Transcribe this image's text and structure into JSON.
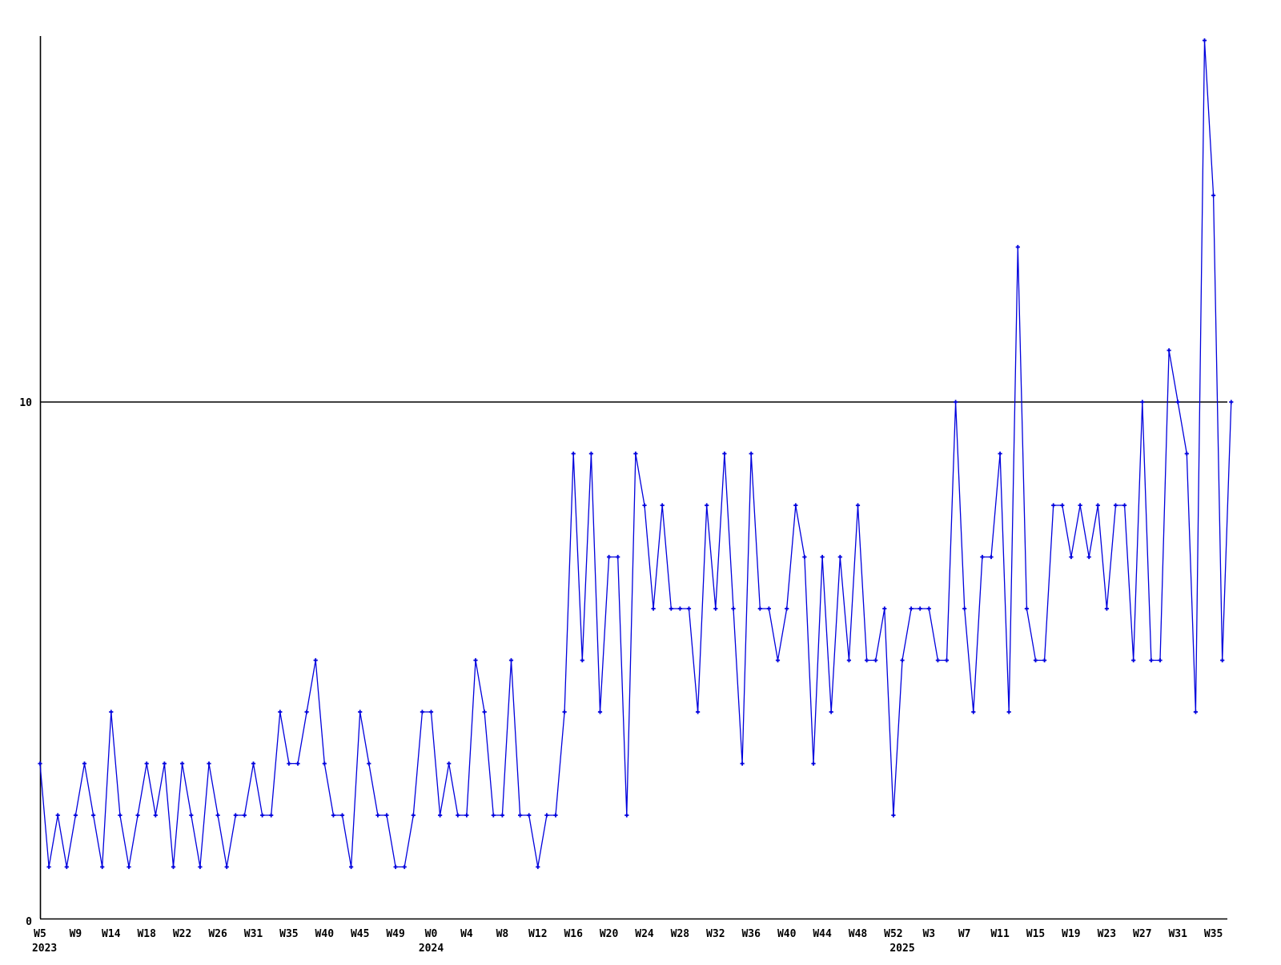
{
  "chart_data": {
    "type": "line",
    "title": "",
    "xlabel": "",
    "ylabel": "",
    "line_color": "#0000dd",
    "marker": "plus",
    "axis_color": "#000000",
    "gridline_value": 10,
    "ylim": [
      0,
      17.8
    ],
    "y_ticks": [
      {
        "label": "0",
        "value": 0
      },
      {
        "label": "10",
        "value": 10
      }
    ],
    "x_tick_every": 4,
    "x_tick_labels": [
      "W5",
      "W9",
      "W14",
      "W18",
      "W22",
      "W26",
      "W31",
      "W35",
      "W40",
      "W45",
      "W49",
      "W0",
      "W4",
      "W8",
      "W12",
      "W16",
      "W20",
      "W24",
      "W28",
      "W32",
      "W36",
      "W40",
      "W44",
      "W48",
      "W52",
      "W3",
      "W7",
      "W11",
      "W15",
      "W19",
      "W23",
      "W27",
      "W31",
      "W35"
    ],
    "year_labels": [
      {
        "text": "2023",
        "point_index": 0.5
      },
      {
        "text": "2024",
        "point_index": 44
      },
      {
        "text": "2025",
        "point_index": 97
      }
    ],
    "values": [
      3,
      1,
      2,
      1,
      2,
      3,
      2,
      1,
      4,
      2,
      1,
      2,
      3,
      2,
      3,
      1,
      3,
      2,
      1,
      3,
      2,
      1,
      2,
      2,
      3,
      2,
      2,
      4,
      3,
      3,
      4,
      5,
      3,
      2,
      2,
      1,
      4,
      3,
      2,
      2,
      1,
      1,
      2,
      4,
      4,
      2,
      3,
      2,
      2,
      5,
      4,
      2,
      2,
      5,
      2,
      2,
      1,
      2,
      2,
      4,
      9,
      5,
      9,
      4,
      7,
      7,
      2,
      9,
      8,
      6,
      8,
      6,
      6,
      6,
      4,
      8,
      6,
      9,
      6,
      3,
      9,
      6,
      6,
      5,
      6,
      8,
      7,
      3,
      7,
      4,
      7,
      5,
      8,
      5,
      5,
      6,
      2,
      5,
      6,
      6,
      6,
      5,
      5,
      10,
      6,
      4,
      7,
      7,
      9,
      4,
      13,
      6,
      5,
      5,
      8,
      8,
      7,
      8,
      7,
      8,
      6,
      8,
      8,
      5,
      10,
      5,
      5,
      11,
      10,
      9,
      4,
      17,
      14,
      5,
      10
    ]
  }
}
